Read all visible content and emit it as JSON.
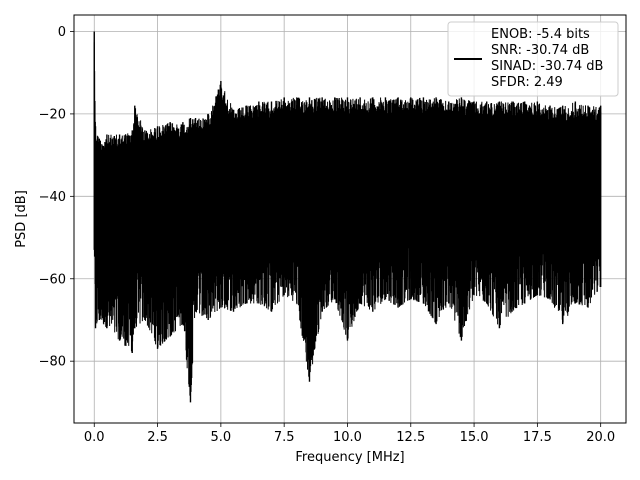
{
  "chart_data": {
    "type": "line",
    "xlabel": "Frequency [MHz]",
    "ylabel": "PSD [dB]",
    "xlim": [
      -0.8,
      21.0
    ],
    "ylim": [
      -95,
      4
    ],
    "xticks": [
      0.0,
      2.5,
      5.0,
      7.5,
      10.0,
      12.5,
      15.0,
      17.5,
      20.0
    ],
    "xtick_labels": [
      "0.0",
      "2.5",
      "5.0",
      "7.5",
      "10.0",
      "12.5",
      "15.0",
      "17.5",
      "20.0"
    ],
    "yticks": [
      0,
      -20,
      -40,
      -60,
      -80
    ],
    "ytick_labels": [
      "0",
      "−20",
      "−40",
      "−60",
      "−80"
    ],
    "grid": true,
    "legend_position": "upper-right",
    "series": [
      {
        "name": "ENOB: -5.4 bits",
        "color": "#000000",
        "x": [
          0.0,
          0.05,
          0.2,
          0.5,
          1.0,
          1.5,
          1.6,
          2.0,
          2.5,
          3.0,
          3.5,
          3.8,
          4.0,
          4.5,
          5.0,
          5.5,
          6.0,
          6.5,
          7.0,
          7.5,
          8.0,
          8.5,
          9.0,
          9.5,
          10.0,
          10.5,
          11.0,
          11.5,
          12.0,
          12.5,
          13.0,
          13.5,
          14.0,
          14.5,
          15.0,
          15.5,
          16.0,
          16.5,
          17.0,
          17.5,
          18.0,
          18.5,
          19.0,
          19.5,
          20.0
        ],
        "upper": [
          0,
          -23,
          -26,
          -25,
          -25,
          -24,
          -18,
          -24,
          -23,
          -22,
          -22,
          -21,
          -21,
          -20,
          -12,
          -19,
          -18,
          -17,
          -17,
          -16,
          -16,
          -16,
          -16,
          -16,
          -16,
          -16,
          -16,
          -16,
          -16,
          -16,
          -16,
          -16,
          -17,
          -16,
          -17,
          -17,
          -17,
          -17,
          -17,
          -17,
          -18,
          -18,
          -17,
          -18,
          -18
        ],
        "lower": [
          -53,
          -72,
          -70,
          -72,
          -75,
          -78,
          -72,
          -70,
          -77,
          -74,
          -71,
          -90,
          -68,
          -70,
          -67,
          -68,
          -66,
          -66,
          -68,
          -64,
          -66,
          -85,
          -68,
          -65,
          -75,
          -66,
          -68,
          -65,
          -67,
          -65,
          -66,
          -71,
          -66,
          -75,
          -64,
          -66,
          -72,
          -68,
          -66,
          -64,
          -65,
          -71,
          -66,
          -67,
          -62
        ]
      }
    ],
    "legend_lines": [
      "ENOB: -5.4 bits",
      "SNR: -30.74 dB",
      "SINAD: -30.74 dB",
      "SFDR: 2.49"
    ]
  }
}
